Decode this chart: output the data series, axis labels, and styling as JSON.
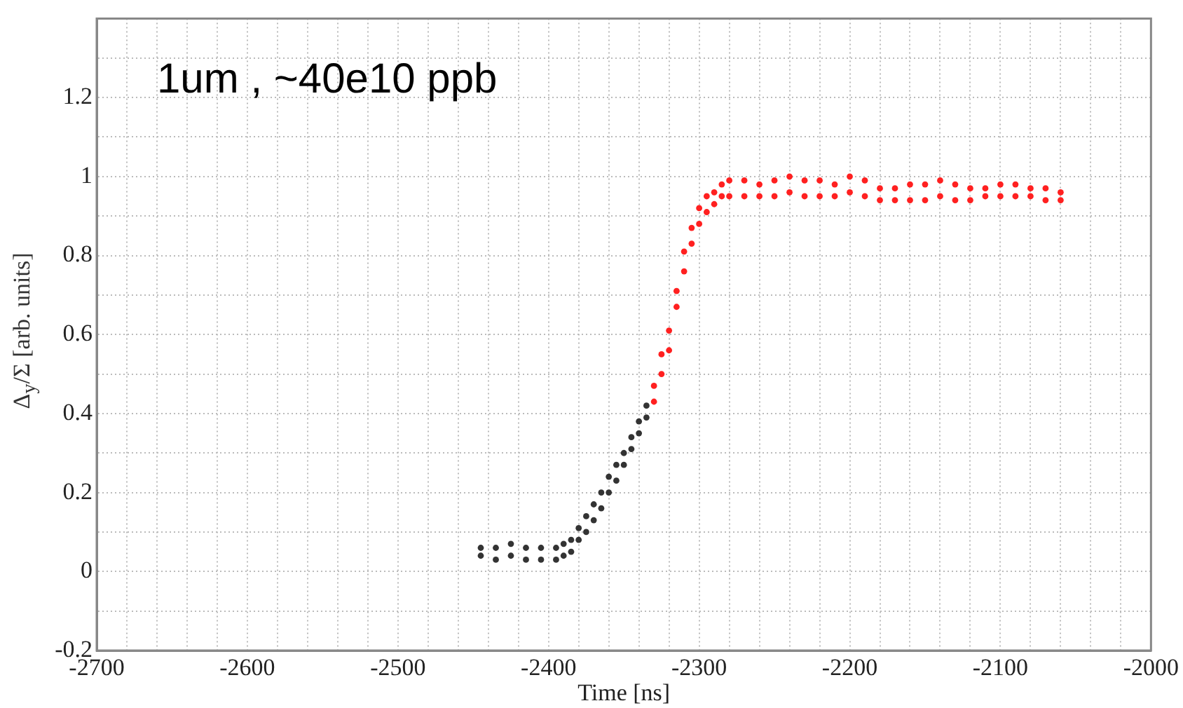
{
  "chart_data": {
    "type": "scatter",
    "xlabel": "Time [ns]",
    "ylabel": "Δ$_{y}$/Σ [arb. units]",
    "annotations": [
      "1um , ~40e10 ppb"
    ],
    "xlim": [
      -2700,
      -2000
    ],
    "ylim": [
      -0.2,
      1.4
    ],
    "xticks": [
      -2700,
      {
        "value": -2680,
        "label": null
      },
      {
        "value": -2660,
        "label": null
      },
      {
        "value": -2640,
        "label": null
      },
      {
        "value": -2620,
        "label": null
      },
      -2600,
      {
        "value": -2580,
        "label": null
      },
      {
        "value": -2560,
        "label": null
      },
      {
        "value": -2540,
        "label": null
      },
      {
        "value": -2520,
        "label": null
      },
      -2500,
      {
        "value": -2480,
        "label": null
      },
      {
        "value": -2460,
        "label": null
      },
      {
        "value": -2440,
        "label": null
      },
      {
        "value": -2420,
        "label": null
      },
      -2400,
      {
        "value": -2380,
        "label": null
      },
      {
        "value": -2360,
        "label": null
      },
      {
        "value": -2340,
        "label": null
      },
      {
        "value": -2320,
        "label": null
      },
      -2300,
      {
        "value": -2280,
        "label": null
      },
      {
        "value": -2260,
        "label": null
      },
      {
        "value": -2240,
        "label": null
      },
      {
        "value": -2220,
        "label": null
      },
      -2200,
      {
        "value": -2180,
        "label": null
      },
      {
        "value": -2160,
        "label": null
      },
      {
        "value": -2140,
        "label": null
      },
      {
        "value": -2120,
        "label": null
      },
      -2100,
      {
        "value": -2080,
        "label": null
      },
      {
        "value": -2060,
        "label": null
      },
      {
        "value": -2040,
        "label": null
      },
      {
        "value": -2020,
        "label": null
      },
      -2000
    ],
    "yticks": [
      -0.2,
      {
        "value": -0.1,
        "label": null
      },
      0,
      {
        "value": 0.1,
        "label": null
      },
      0.2,
      {
        "value": 0.3,
        "label": null
      },
      0.4,
      {
        "value": 0.5,
        "label": null
      },
      0.6,
      {
        "value": 0.7,
        "label": null
      },
      0.8,
      {
        "value": 0.9,
        "label": null
      },
      1,
      {
        "value": 1.1,
        "label": null
      },
      1.2,
      {
        "value": 1.3,
        "label": null
      },
      {
        "value": 1.4,
        "label": null
      }
    ],
    "grid": true,
    "marker": "circle",
    "series": [
      {
        "color": "#333333",
        "x": [
          -2445,
          -2445,
          -2435,
          -2435,
          -2425,
          -2425,
          -2415,
          -2415,
          -2405,
          -2405,
          -2395,
          -2395,
          -2390,
          -2390,
          -2385,
          -2385,
          -2380,
          -2380,
          -2375,
          -2375,
          -2370,
          -2370,
          -2365,
          -2365,
          -2360,
          -2360,
          -2355,
          -2355,
          -2350,
          -2350,
          -2345,
          -2345,
          -2340,
          -2340,
          -2335,
          -2335
        ],
        "values": [
          0.04,
          0.06,
          0.03,
          0.06,
          0.04,
          0.07,
          0.03,
          0.06,
          0.03,
          0.06,
          0.03,
          0.06,
          0.04,
          0.07,
          0.05,
          0.08,
          0.08,
          0.11,
          0.1,
          0.14,
          0.13,
          0.17,
          0.16,
          0.2,
          0.2,
          0.24,
          0.23,
          0.27,
          0.27,
          0.3,
          0.31,
          0.34,
          0.35,
          0.38,
          0.39,
          0.42
        ]
      },
      {
        "color": "#ff2020",
        "x": [
          -2330,
          -2330,
          -2325,
          -2325,
          -2320,
          -2320,
          -2315,
          -2315,
          -2310,
          -2310,
          -2305,
          -2305,
          -2300,
          -2300,
          -2295,
          -2295,
          -2290,
          -2290,
          -2285,
          -2285,
          -2280,
          -2280,
          -2270,
          -2270,
          -2260,
          -2260,
          -2250,
          -2250,
          -2240,
          -2240,
          -2230,
          -2230,
          -2220,
          -2220,
          -2210,
          -2210,
          -2200,
          -2200,
          -2190,
          -2190,
          -2180,
          -2180,
          -2170,
          -2170,
          -2160,
          -2160,
          -2150,
          -2150,
          -2140,
          -2140,
          -2130,
          -2130,
          -2120,
          -2120,
          -2110,
          -2110,
          -2100,
          -2100,
          -2090,
          -2090,
          -2080,
          -2080,
          -2070,
          -2070,
          -2060,
          -2060
        ],
        "values": [
          0.43,
          0.47,
          0.5,
          0.55,
          0.56,
          0.61,
          0.67,
          0.71,
          0.76,
          0.81,
          0.83,
          0.87,
          0.88,
          0.92,
          0.91,
          0.95,
          0.93,
          0.96,
          0.95,
          0.98,
          0.95,
          0.99,
          0.95,
          0.99,
          0.95,
          0.98,
          0.95,
          0.99,
          0.96,
          1.0,
          0.95,
          0.99,
          0.95,
          0.99,
          0.95,
          0.98,
          0.96,
          1.0,
          0.95,
          0.99,
          0.94,
          0.97,
          0.94,
          0.97,
          0.94,
          0.98,
          0.94,
          0.98,
          0.95,
          0.99,
          0.94,
          0.98,
          0.94,
          0.97,
          0.95,
          0.97,
          0.95,
          0.98,
          0.95,
          0.98,
          0.95,
          0.97,
          0.94,
          0.97,
          0.94,
          0.96
        ]
      }
    ]
  }
}
